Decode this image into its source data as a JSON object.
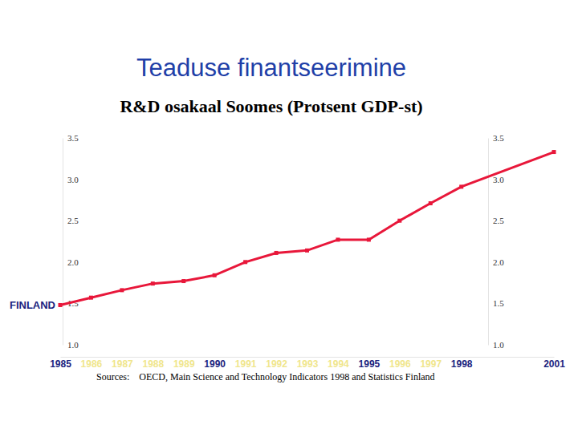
{
  "chart_data": {
    "type": "line",
    "title": "Teaduse finantseerimine",
    "subtitle": "R&D osakaal Soomes (Protsent GDP-st)",
    "source": "Sources:    OECD, Main Science and Technology Indicators 1998 and Statistics Finland",
    "x": [
      1985,
      1986,
      1987,
      1988,
      1989,
      1990,
      1991,
      1992,
      1993,
      1994,
      1995,
      1996,
      1997,
      1998,
      2001
    ],
    "series": [
      {
        "name": "FINLAND",
        "color": "#e8173a",
        "marker": "square",
        "values": [
          1.48,
          1.57,
          1.66,
          1.74,
          1.77,
          1.84,
          2.0,
          2.11,
          2.14,
          2.27,
          2.27,
          2.5,
          2.71,
          2.91,
          3.33
        ]
      }
    ],
    "xlim": [
      1985,
      2001
    ],
    "xticks": [
      1985,
      1986,
      1987,
      1988,
      1989,
      1990,
      1991,
      1992,
      1993,
      1994,
      1995,
      1996,
      1997,
      1998,
      2001
    ],
    "ylim": [
      1,
      3.5
    ],
    "yticks": [
      {
        "value": 1,
        "label": "1.0"
      },
      1.5,
      {
        "value": 2,
        "label": "2.0"
      },
      2.5,
      {
        "value": 3,
        "label": "3.0"
      },
      3.5
    ],
    "grid": false
  }
}
